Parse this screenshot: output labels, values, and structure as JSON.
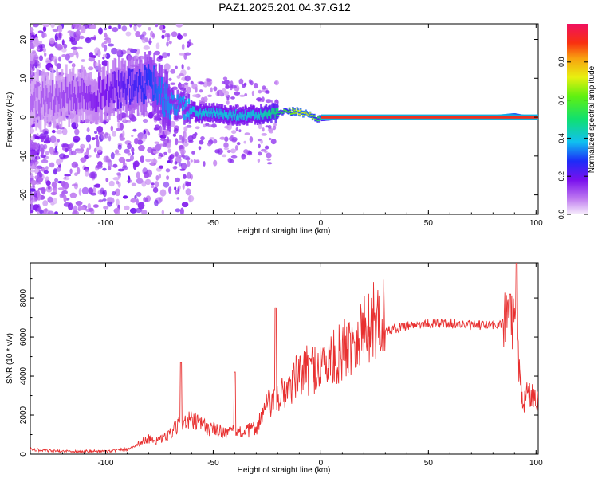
{
  "title": "PAZ1.2025.201.04.37.G12",
  "chart_data": [
    {
      "type": "heatmap",
      "xlabel": "Height of straight line (km)",
      "ylabel": "Frequency (Hz)",
      "xlim": [
        -135,
        101
      ],
      "ylim": [
        -25,
        24
      ],
      "xticks": [
        -100,
        -50,
        0,
        50,
        100
      ],
      "yticks": [
        -20,
        -10,
        0,
        10,
        20
      ],
      "colorbar": {
        "label": "Normalized spectral amplitude",
        "range": [
          0.0,
          1.0
        ],
        "ticks": [
          0.0,
          0.2,
          0.4,
          0.6,
          0.8
        ],
        "colormap": "rainbow"
      },
      "ridge": {
        "description_x": [
          -135,
          -110,
          -95,
          -85,
          -78,
          -72,
          -65,
          -58,
          -50,
          -40,
          -30,
          -20,
          -10,
          -5,
          0,
          10,
          20,
          40,
          60,
          80,
          90,
          95,
          101
        ],
        "frequency_hz": [
          4,
          6,
          7,
          8,
          9,
          4,
          3,
          1,
          1,
          0.5,
          0.5,
          1,
          1.5,
          0.5,
          -0.5,
          0,
          0,
          0,
          0,
          0,
          0.5,
          0,
          0
        ],
        "peak_amplitude": [
          0.1,
          0.15,
          0.2,
          0.25,
          0.3,
          0.35,
          0.35,
          0.4,
          0.4,
          0.4,
          0.4,
          0.5,
          0.7,
          0.7,
          0.5,
          0.8,
          0.95,
          0.9,
          0.95,
          0.95,
          0.7,
          0.5,
          0.4
        ]
      }
    },
    {
      "type": "line",
      "xlabel": "Height of straight line (km)",
      "ylabel": "SNR (10 * v/v)",
      "xlim": [
        -135,
        101
      ],
      "ylim": [
        0,
        9800
      ],
      "xticks": [
        -100,
        -50,
        0,
        50,
        100
      ],
      "yticks": [
        0,
        2000,
        4000,
        6000,
        8000
      ],
      "color": "#e83030",
      "x": [
        -135,
        -125,
        -115,
        -100,
        -90,
        -80,
        -75,
        -70,
        -65,
        -60,
        -55,
        -50,
        -45,
        -40,
        -35,
        -30,
        -25,
        -20,
        -15,
        -10,
        -5,
        0,
        5,
        10,
        15,
        20,
        25,
        30,
        40,
        50,
        60,
        70,
        80,
        85,
        88,
        90,
        92,
        94,
        96,
        98,
        101
      ],
      "y": [
        250,
        150,
        150,
        150,
        250,
        700,
        600,
        900,
        1400,
        1500,
        1300,
        1100,
        1000,
        1000,
        1000,
        1200,
        2200,
        2500,
        3000,
        3600,
        3800,
        4000,
        4200,
        4600,
        5200,
        5600,
        6000,
        6300,
        6600,
        6700,
        6700,
        6600,
        6600,
        6700,
        7200,
        6500,
        4500,
        2500,
        3200,
        3000,
        2900
      ],
      "spikes": [
        {
          "x": -65,
          "y": 4700
        },
        {
          "x": -40,
          "y": 4200
        },
        {
          "x": -21,
          "y": 7500
        },
        {
          "x": 91,
          "y": 9800
        },
        {
          "x": 88,
          "y": 8200
        }
      ]
    }
  ]
}
